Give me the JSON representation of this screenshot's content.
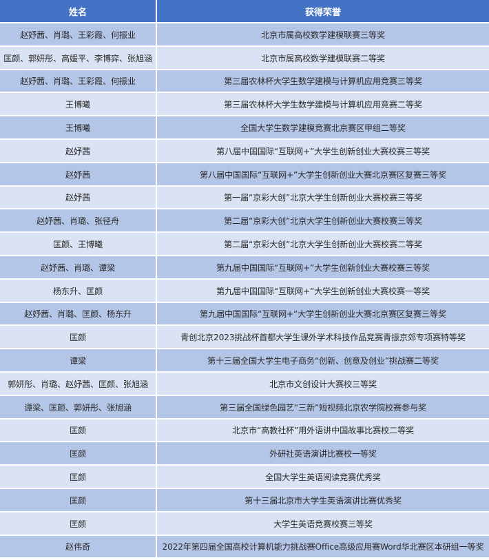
{
  "header": {
    "name": "姓名",
    "honor": "获得荣誉"
  },
  "colors": {
    "header": "#4472c4",
    "row_dark": "#b4c6e7",
    "row_light": "#dae3f3"
  },
  "rows": [
    {
      "name": "赵妤茜、肖璐、王彩霞、何振业",
      "honor": "北京市属高校数学建模联赛三等奖"
    },
    {
      "name": "匡颜、郭妍彤、高媛平、李博弈、张旭涵",
      "honor": "北京市属高校数学建模联赛二等奖"
    },
    {
      "name": "赵妤茜、肖璐、王彩霞、何振业",
      "honor": "第三届农林杯大学生数学建模与计算机应用竞赛三等奖"
    },
    {
      "name": "王博曦",
      "honor": "第三届农林杯大学生数学建模与计算机应用竞赛二等奖"
    },
    {
      "name": "王博曦",
      "honor": "全国大学生数学建模竞赛北京赛区甲组二等奖"
    },
    {
      "name": "赵妤茜",
      "honor": "第八届中国国际“互联网+”大学生创新创业大赛校赛三等奖"
    },
    {
      "name": "赵妤茜",
      "honor": "第八届中国国际“互联网+”大学生创新创业大赛北京赛区复赛三等奖"
    },
    {
      "name": "赵妤茜",
      "honor": "第一届“京彩大创”北京大学生创新创业大赛校赛三等奖"
    },
    {
      "name": "赵妤茜、肖璐、张径舟",
      "honor": "第二届“京彩大创”北京大学生创新创业大赛校赛三等奖"
    },
    {
      "name": "匡颜、王博曦",
      "honor": "第二届“京彩大创”北京大学生创新创业大赛校赛二等奖"
    },
    {
      "name": "赵妤茜、肖璐、谭梁",
      "honor": "第九届中国国际“互联网+”大学生创新创业大赛校赛三等奖"
    },
    {
      "name": "杨东升、匡颜",
      "honor": "第九届中国国际“互联网+”大学生创新创业大赛校赛一等奖"
    },
    {
      "name": "赵妤茜、肖璐、匡颜、杨东升",
      "honor": "第九届中国国际“互联网+”大学生创新创业大赛北京赛区复赛三等奖"
    },
    {
      "name": "匡颜",
      "honor": "青创北京2023挑战杯首都大学生课外学术科技作品竞赛青振京郊专项赛特等奖"
    },
    {
      "name": "谭梁",
      "honor": "第十三届全国大学生电子商务“创新、创意及创业”挑战赛二等奖"
    },
    {
      "name": "郭妍彤、肖璐、赵妤茜、匡颜、张旭涵",
      "honor": "北京市文创设计大赛校三等奖"
    },
    {
      "name": "谭梁、匡颜、郭妍彤、张旭涵",
      "honor": "第三届全国绿色园艺“三新”短视频北京农学院校赛参与奖"
    },
    {
      "name": "匡颜",
      "honor": "北京市“高教社杯”用外语讲中国故事比赛校二等奖"
    },
    {
      "name": "匡颜",
      "honor": "外研社英语演讲比赛校一等奖"
    },
    {
      "name": "匡颜",
      "honor": "全国大学生英语阅读竞赛优秀奖"
    },
    {
      "name": "匡颜",
      "honor": "第十三届北京市大学生英语演讲比赛优秀奖"
    },
    {
      "name": "匡颜",
      "honor": "大学生英语竞赛校赛三等奖"
    },
    {
      "name": "赵伟奇",
      "honor": "2022年第四届全国高校计算机能力挑战赛Office高级应用赛Word华北赛区本研组一等奖"
    }
  ]
}
